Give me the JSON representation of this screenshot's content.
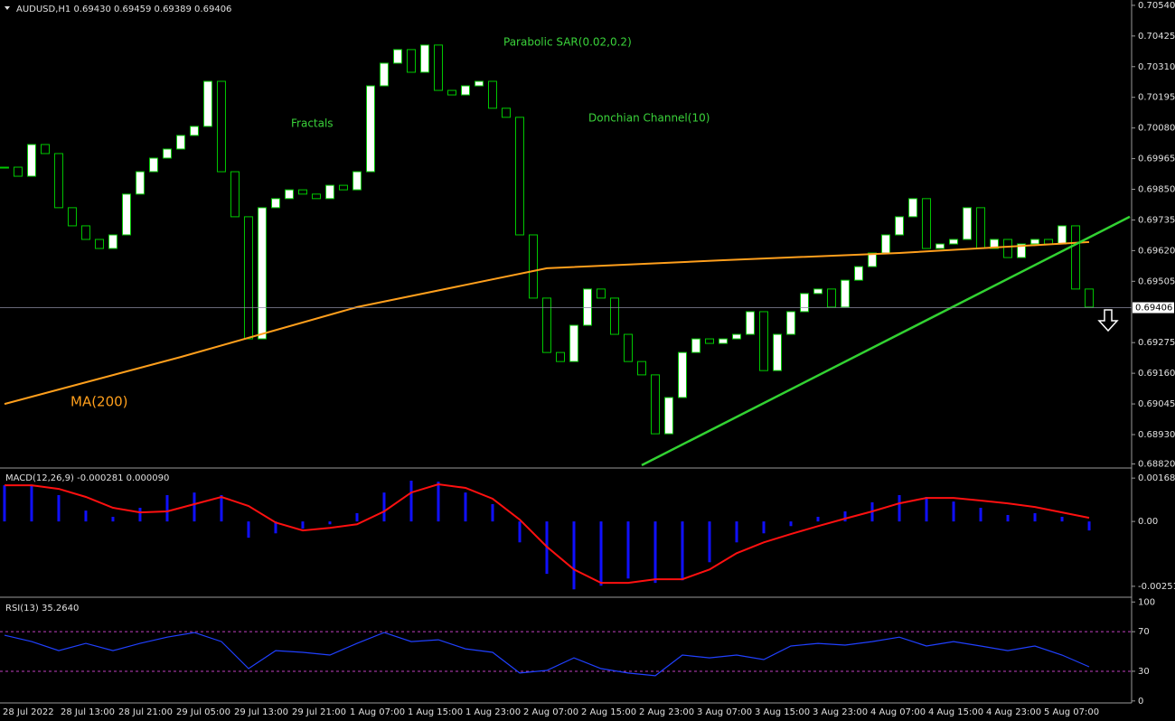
{
  "chart_data": [
    {
      "type": "candlestick",
      "title": "AUDUSD,H1 0.69430 0.69459 0.69389 0.69406",
      "xlim": [
        -0.33,
        83.13
      ],
      "ylim": [
        0.68808,
        0.7056
      ],
      "yticks": [
        {
          "value": 0.7054,
          "label": "0.70540"
        },
        0.70425,
        {
          "value": 0.7031,
          "label": "0.70310"
        },
        0.70195,
        {
          "value": 0.7008,
          "label": "0.70080"
        },
        0.69965,
        {
          "value": 0.6985,
          "label": "0.69850"
        },
        0.69735,
        {
          "value": 0.6962,
          "label": "0.69620"
        },
        0.69505,
        0.69275,
        {
          "value": 0.6916,
          "label": "0.69160"
        },
        0.69045,
        {
          "value": 0.6893,
          "label": "0.68930"
        },
        {
          "value": 0.6882,
          "label": "0.68820"
        }
      ],
      "close": [
        0.69933,
        0.69899,
        0.70018,
        0.69984,
        0.69781,
        0.69713,
        0.69662,
        0.69628,
        0.69679,
        0.69832,
        0.69916,
        0.69967,
        0.70001,
        0.70052,
        0.70086,
        0.70255,
        0.69916,
        0.69747,
        0.69289,
        0.69781,
        0.69815,
        0.69848,
        0.69832,
        0.69815,
        0.69865,
        0.69848,
        0.69916,
        0.70238,
        0.70323,
        0.70374,
        0.70289,
        0.70391,
        0.70221,
        0.70204,
        0.70238,
        0.70255,
        0.70154,
        0.7012,
        0.69679,
        0.69442,
        0.69238,
        0.69204,
        0.6934,
        0.69476,
        0.69442,
        0.69306,
        0.69204,
        0.69154,
        0.68933,
        0.69069,
        0.69238,
        0.69289,
        0.69272,
        0.69289,
        0.69306,
        0.69391,
        0.6917,
        0.69306,
        0.69391,
        0.69459,
        0.69476,
        0.69408,
        0.69509,
        0.6956,
        0.69611,
        0.69679,
        0.69747,
        0.69815,
        0.69628,
        0.69645,
        0.69662,
        0.69781,
        0.69628,
        0.69662,
        0.69594,
        0.69645,
        0.69662,
        0.69645,
        0.69713,
        0.69476,
        0.69408
      ],
      "up_color": "#ffffff",
      "down_color": "#000000",
      "outline_color": "#00c800",
      "lines": [
        {
          "name": "MA(200)",
          "color": "#ff9f1c",
          "x": [
            0,
            13,
            26,
            40,
            53,
            66,
            80
          ],
          "values": [
            0.69045,
            0.69221,
            0.69408,
            0.69554,
            0.69584,
            0.69611,
            0.69652
          ]
        }
      ],
      "trend_line": {
        "color": "#32d232",
        "x": [
          47,
          83
        ],
        "values": [
          0.68815,
          0.69747
        ]
      },
      "current_price": 0.69406,
      "annotations": [
        "Fractals",
        "Parabolic SAR(0.02,0.2)",
        "Donchian Channel(10)"
      ],
      "x_labels": [
        "28 Jul 2022",
        "28 Jul 13:00",
        "28 Jul 21:00",
        "29 Jul 05:00",
        "29 Jul 13:00",
        "29 Jul 21:00",
        "1 Aug 07:00",
        "1 Aug 15:00",
        "1 Aug 23:00",
        "2 Aug 07:00",
        "2 Aug 15:00",
        "2 Aug 23:00",
        "3 Aug 07:00",
        "3 Aug 15:00",
        "3 Aug 23:00",
        "4 Aug 07:00",
        "4 Aug 15:00",
        "4 Aug 23:00",
        "5 Aug 07:00"
      ]
    },
    {
      "type": "macd",
      "title": "MACD(12,26,9) -0.000281 0.000090",
      "ylim": [
        -0.0029,
        0.002
      ],
      "yticks": [
        0.00168,
        {
          "value": 0,
          "label": "0.00"
        },
        -0.002512
      ],
      "x": [
        0,
        2,
        4,
        6,
        8,
        10,
        12,
        14,
        16,
        18,
        20,
        22,
        24,
        26,
        28,
        30,
        32,
        34,
        36,
        38,
        40,
        42,
        44,
        46,
        48,
        50,
        52,
        54,
        56,
        58,
        60,
        62,
        64,
        66,
        68,
        70,
        72,
        74,
        76,
        78,
        80
      ],
      "histogram": {
        "color": "#1010ff",
        "values": [
          0.0014,
          0.00137,
          0.00102,
          0.00042,
          0.00018,
          0.00053,
          0.00102,
          0.00112,
          0.00102,
          -0.00063,
          -0.00046,
          -0.00028,
          -0.00011,
          0.00032,
          0.00112,
          0.00158,
          0.00154,
          0.00112,
          0.00067,
          -0.00081,
          -0.00203,
          -0.00263,
          -0.00249,
          -0.00221,
          -0.00238,
          -0.00228,
          -0.00158,
          -0.00081,
          -0.00046,
          -0.00018,
          0.00018,
          0.00039,
          0.00074,
          0.00102,
          0.00095,
          0.00077,
          0.00053,
          0.00025,
          0.00032,
          0.00018,
          -0.00035
        ]
      },
      "signal": {
        "color": "#ff1010",
        "values": [
          0.0014,
          0.0014,
          0.00126,
          0.00095,
          0.00053,
          0.00035,
          0.00039,
          0.00067,
          0.00095,
          0.0006,
          -4e-05,
          -0.00035,
          -0.00025,
          -0.00011,
          0.00039,
          0.00112,
          0.00144,
          0.0013,
          0.00088,
          7e-05,
          -0.00098,
          -0.00186,
          -0.00238,
          -0.00238,
          -0.00224,
          -0.00224,
          -0.00186,
          -0.00123,
          -0.00081,
          -0.00049,
          -0.00018,
          0.00011,
          0.00039,
          0.0007,
          0.00091,
          0.00091,
          0.00081,
          0.0007,
          0.00056,
          0.00035,
          0.00014
        ]
      }
    },
    {
      "type": "line",
      "title": "RSI(13) 35.2640",
      "ylim": [
        -2,
        103
      ],
      "yticks": [
        0,
        30,
        70,
        100
      ],
      "levels": [
        30,
        70
      ],
      "level_color": "#c040c0",
      "color": "#2040ff",
      "x": [
        0,
        2,
        4,
        6,
        8,
        10,
        12,
        14,
        16,
        18,
        20,
        22,
        24,
        26,
        28,
        30,
        32,
        34,
        36,
        38,
        40,
        42,
        44,
        46,
        48,
        50,
        52,
        54,
        56,
        58,
        60,
        62,
        64,
        66,
        68,
        70,
        72,
        74,
        76,
        78,
        80
      ],
      "values": [
        66.4,
        60,
        50.9,
        58.2,
        50.9,
        58.2,
        64.5,
        69.1,
        60,
        32.7,
        50.9,
        49.1,
        46.4,
        58.2,
        69.1,
        60,
        61.8,
        52.7,
        49.1,
        28.2,
        30.9,
        43.6,
        32.7,
        28.2,
        25.5,
        46.4,
        43.6,
        46.4,
        41.8,
        55.5,
        58.2,
        56.4,
        60,
        64.5,
        55.5,
        60,
        55.5,
        50.9,
        55.5,
        46.4,
        34.5
      ]
    }
  ]
}
